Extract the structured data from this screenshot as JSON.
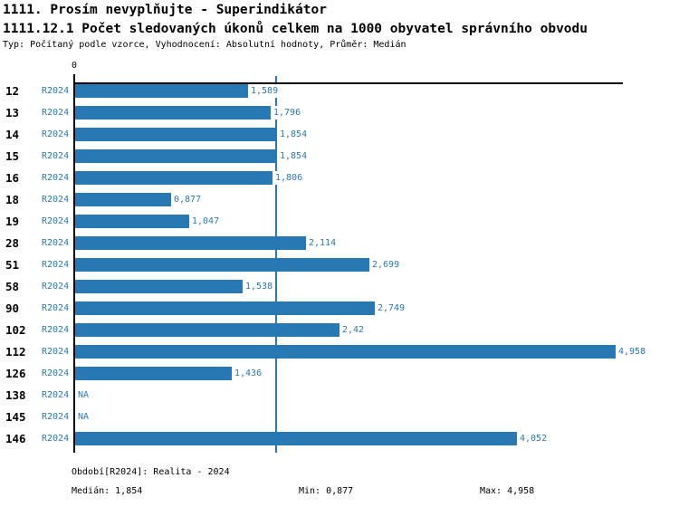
{
  "header": {
    "title_line1": "1111. Prosím nevyplňujte - Superindikátor",
    "title_line2": "1111.12.1 Počet sledovaných úkonů celkem na 1000 obyvatel správního obvodu",
    "subtitle": "Typ: Počítaný podle vzorce, Vyhodnocení: Absolutní hodnoty, Průměr: Medián"
  },
  "chart_data": {
    "type": "bar",
    "orientation": "horizontal",
    "title": "1111.12.1 Počet sledovaných úkonů celkem na 1000 obyvatel správního obvodu",
    "xlabel": "",
    "ylabel": "",
    "xlim": [
      0,
      5.04
    ],
    "x_axis_zero_tick_label": "0",
    "grid": false,
    "period_label": "R2024",
    "na_label": "NA",
    "categories": [
      "12",
      "13",
      "14",
      "15",
      "16",
      "18",
      "19",
      "28",
      "51",
      "58",
      "90",
      "102",
      "112",
      "126",
      "138",
      "145",
      "146"
    ],
    "values": [
      1.589,
      1.796,
      1.854,
      1.854,
      1.806,
      0.877,
      1.047,
      2.114,
      2.699,
      1.538,
      2.749,
      2.42,
      4.958,
      1.436,
      null,
      null,
      4.052
    ],
    "value_labels": [
      "1,589",
      "1,796",
      "1,854",
      "1,854",
      "1,806",
      "0,877",
      "1,047",
      "2,114",
      "2,699",
      "1,538",
      "2,749",
      "2,42",
      "4,958",
      "1,436",
      "NA",
      "NA",
      "4,052"
    ],
    "median_value": 1.854,
    "median_reference_line": true,
    "bar_color": "#2878b4",
    "label_color": "#2878b4",
    "median_line_color": "#2878b4",
    "axis_color": "#000000"
  },
  "footer": {
    "period": "Období[R2024]: Realita - 2024",
    "median": "Medián: 1,854",
    "min": "Min: 0,877",
    "max": "Max: 4,958"
  }
}
